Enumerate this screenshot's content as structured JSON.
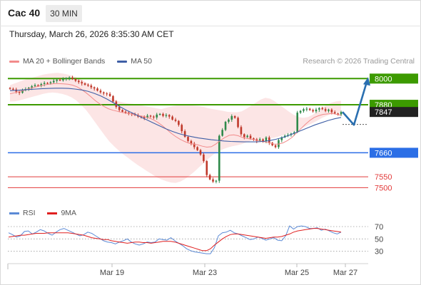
{
  "header": {
    "instrument": "Cac 40",
    "timeframe": "30 MIN",
    "datetime": "Thursday, March 26, 2026 8:35:30 AM CET"
  },
  "legend": {
    "ma20_label": "MA 20 + Bollinger Bands",
    "ma50_label": "MA 50",
    "credit": "Research © 2026 Trading Central"
  },
  "rsi_legend": {
    "rsi_label": "RSI",
    "ma9_label": "9MA"
  },
  "colors": {
    "resistance": "#3c9a00",
    "support": "#2b6ee6",
    "target": "#e23a3a",
    "candle_up": "#2f8a4a",
    "candle_down": "#c0392b",
    "bollinger": "#fbdcdc",
    "ma20": "#f28b8b",
    "ma50": "#3f5fa6",
    "rsi": "#5b8ad6",
    "ma9": "#e02020",
    "arrow": "#2a6fb0"
  },
  "chart_data": [
    {
      "type": "candlestick",
      "title": "Cac 40",
      "price_range": [
        7472,
        8050
      ],
      "x_ticks": [
        "Mar 19",
        "Mar 23",
        "Mar 25",
        "Mar 27"
      ],
      "levels": [
        {
          "label": "8000",
          "value": 8000,
          "kind": "resistance"
        },
        {
          "label": "7880",
          "value": 7880,
          "kind": "resistance"
        },
        {
          "label": "7847",
          "value": 7847,
          "kind": "last"
        },
        {
          "label": "7660",
          "value": 7660,
          "kind": "support"
        },
        {
          "label": "7550",
          "value": 7550,
          "kind": "target"
        },
        {
          "label": "7500",
          "value": 7500,
          "kind": "target"
        }
      ],
      "close": [
        7953,
        7950,
        7940,
        7935,
        7948,
        7952,
        7958,
        7965,
        7970,
        7968,
        7975,
        7980,
        7978,
        7983,
        7990,
        7995,
        7992,
        7998,
        8002,
        8005,
        7998,
        7990,
        7984,
        7978,
        7972,
        7968,
        7960,
        7955,
        7945,
        7937,
        7932,
        7930,
        7920,
        7895,
        7870,
        7856,
        7848,
        7844,
        7840,
        7838,
        7832,
        7826,
        7825,
        7820,
        7830,
        7826,
        7822,
        7835,
        7838,
        7829,
        7833,
        7826,
        7812,
        7806,
        7788,
        7759,
        7733,
        7714,
        7702,
        7686,
        7672,
        7652,
        7622,
        7558,
        7538,
        7528,
        7532,
        7738,
        7765,
        7802,
        7812,
        7828,
        7820,
        7778,
        7745,
        7732,
        7738,
        7726,
        7722,
        7714,
        7722,
        7712,
        7730,
        7706,
        7694,
        7686,
        7718,
        7731,
        7738,
        7742,
        7748,
        7754,
        7844,
        7852,
        7860,
        7862,
        7856,
        7850,
        7858,
        7865,
        7860,
        7852,
        7858,
        7846,
        7840,
        7836,
        7847
      ],
      "ma20": [
        7930,
        7935,
        7940,
        7945,
        7952,
        7958,
        7963,
        7968,
        7972,
        7975,
        7977,
        7977,
        7976,
        7974,
        7970,
        7962,
        7950,
        7935,
        7918,
        7900,
        7885,
        7872,
        7862,
        7855,
        7850,
        7845,
        7842,
        7838,
        7834,
        7830,
        7826,
        7820,
        7812,
        7800,
        7785,
        7768,
        7750,
        7735,
        7722,
        7712,
        7704,
        7700,
        7696,
        7690,
        7686,
        7688,
        7700,
        7716,
        7730,
        7740,
        7742,
        7738,
        7730,
        7726,
        7722,
        7718,
        7714,
        7710,
        7705,
        7700,
        7700,
        7705,
        7716,
        7730,
        7750,
        7770,
        7790,
        7808,
        7822,
        7830,
        7836,
        7838,
        7840,
        7836,
        7832
      ],
      "ma50": [
        7945,
        7946,
        7948,
        7950,
        7952,
        7954,
        7955,
        7956,
        7956,
        7955,
        7952,
        7948,
        7942,
        7932,
        7920,
        7905,
        7888,
        7870,
        7854,
        7840,
        7826,
        7812,
        7798,
        7784,
        7770,
        7758,
        7748,
        7740,
        7734,
        7728,
        7724,
        7720,
        7717,
        7714,
        7712,
        7711,
        7710,
        7710,
        7710,
        7712,
        7716,
        7722,
        7730,
        7740,
        7752,
        7764,
        7776,
        7788,
        7798,
        7808,
        7816,
        7822
      ],
      "bb_upper": [
        7970,
        7978,
        7986,
        7994,
        8000,
        8006,
        8012,
        8018,
        8022,
        8025,
        8026,
        8024,
        8020,
        8014,
        8006,
        7996,
        7984,
        7970,
        7955,
        7940,
        7926,
        7914,
        7904,
        7896,
        7890,
        7886,
        7884,
        7880,
        7876,
        7872,
        7868,
        7864,
        7860,
        7866,
        7872,
        7876,
        7878,
        7880,
        7878,
        7876,
        7874,
        7870,
        7864,
        7860,
        7856,
        7852,
        7848,
        7846,
        7846,
        7850,
        7862,
        7876,
        7890,
        7904,
        7912,
        7908,
        7896,
        7880,
        7864,
        7848,
        7834,
        7824,
        7820,
        7824,
        7834,
        7850,
        7866,
        7880,
        7890,
        7896,
        7898
      ],
      "bb_lower": [
        7895,
        7896,
        7900,
        7906,
        7912,
        7918,
        7924,
        7930,
        7934,
        7936,
        7934,
        7930,
        7924,
        7914,
        7900,
        7880,
        7858,
        7830,
        7800,
        7770,
        7740,
        7712,
        7690,
        7670,
        7652,
        7636,
        7620,
        7604,
        7590,
        7576,
        7562,
        7548,
        7538,
        7530,
        7524,
        7522,
        7528,
        7540,
        7556,
        7574,
        7594,
        7614,
        7634,
        7652,
        7666,
        7676,
        7684,
        7690,
        7694,
        7700,
        7708,
        7716,
        7720,
        7722,
        7724,
        7726,
        7730,
        7736,
        7742,
        7750,
        7758,
        7766,
        7776,
        7786,
        7796,
        7808,
        7820,
        7830,
        7838,
        7844,
        7848
      ],
      "forecast": [
        7847,
        7788,
        8000
      ]
    },
    {
      "type": "line",
      "title": "RSI",
      "y_ticks": [
        70,
        50,
        30
      ],
      "ylim": [
        10,
        85
      ],
      "series": [
        {
          "name": "RSI",
          "values": [
            60,
            57,
            53,
            55,
            62,
            63,
            58,
            61,
            65,
            63,
            59,
            56,
            61,
            65,
            67,
            64,
            61,
            58,
            55,
            57,
            61,
            59,
            55,
            51,
            47,
            45,
            44,
            42,
            45,
            47,
            50,
            45,
            42,
            40,
            42,
            45,
            44,
            45,
            50,
            49,
            48,
            52,
            47,
            43,
            39,
            34,
            31,
            29,
            28,
            27,
            26,
            26,
            36,
            55,
            60,
            61,
            64,
            60,
            58,
            55,
            52,
            49,
            50,
            53,
            51,
            48,
            50,
            52,
            48,
            47,
            55,
            71,
            66,
            70,
            71,
            70,
            67,
            67,
            68,
            64,
            66,
            63,
            60,
            58,
            61
          ]
        },
        {
          "name": "9MA",
          "values": [
            53,
            54,
            55,
            56,
            56,
            57,
            58,
            59,
            59,
            59,
            60,
            60,
            60,
            60,
            60,
            60,
            59,
            58,
            57,
            56,
            54,
            52,
            51,
            50,
            49,
            49,
            47,
            46,
            45,
            44,
            43,
            44,
            45,
            45,
            44,
            44,
            43,
            44,
            45,
            46,
            46,
            46,
            45,
            43,
            41,
            39,
            37,
            35,
            33,
            31,
            31,
            34,
            40,
            45,
            50,
            54,
            57,
            58,
            58,
            57,
            56,
            55,
            54,
            53,
            52,
            51,
            52,
            53,
            53,
            54,
            56,
            58,
            61,
            63,
            64,
            65,
            66,
            67,
            67,
            66,
            65,
            64,
            63,
            62,
            61
          ]
        }
      ]
    }
  ]
}
